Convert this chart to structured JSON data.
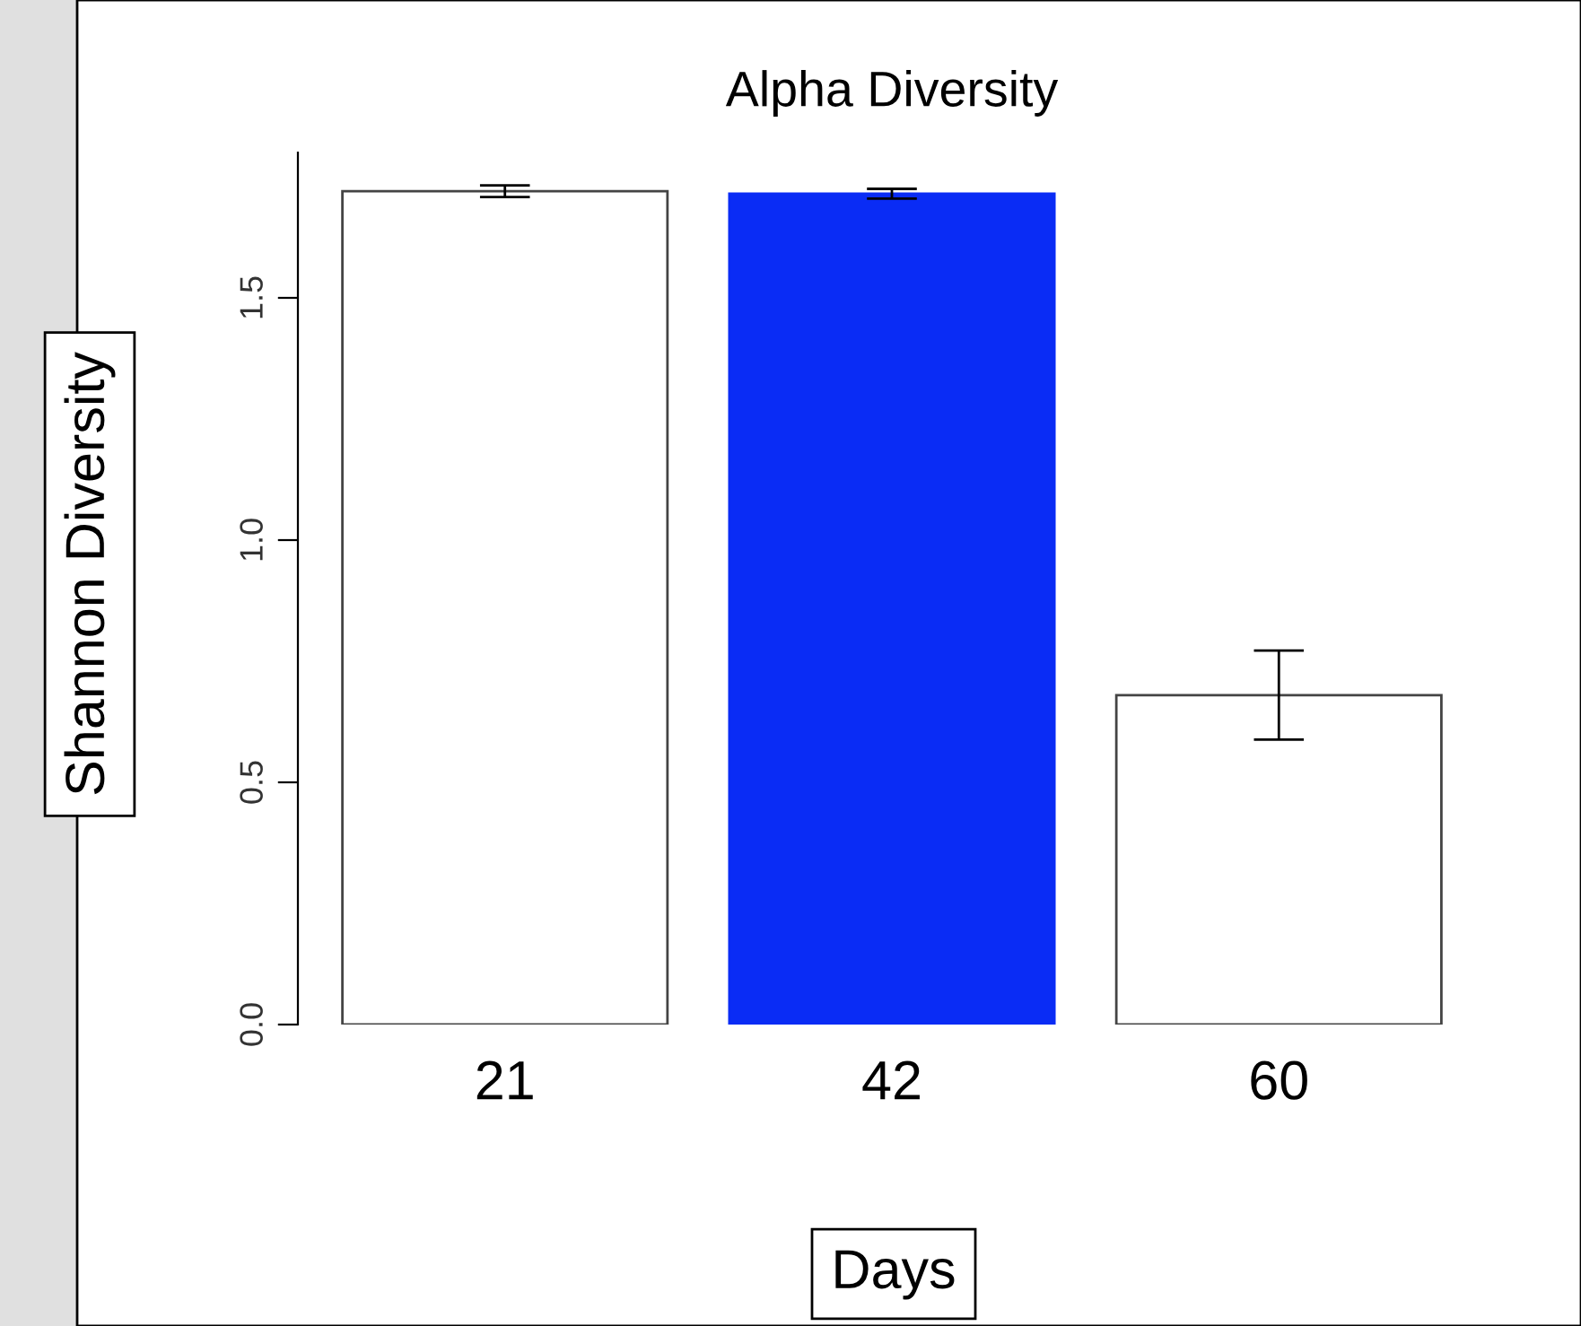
{
  "chart_data": {
    "type": "bar",
    "title": "Alpha Diversity",
    "xlabel": "Days",
    "ylabel": "Shannon Diversity",
    "categories": [
      "21",
      "42",
      "60"
    ],
    "values": [
      1.72,
      1.715,
      0.68
    ],
    "errors": [
      0.012,
      0.01,
      0.092
    ],
    "colors": [
      "#ffffff",
      "#0a2cf5",
      "#ffffff"
    ],
    "ylim": [
      0,
      1.8
    ],
    "yticks": [
      {
        "value": 0,
        "label": "0.0"
      },
      {
        "value": 0.5,
        "label": "0.5"
      },
      {
        "value": 1.0,
        "label": "1.0"
      },
      {
        "value": 1.5,
        "label": "1.5"
      }
    ],
    "grid": false,
    "legend": false
  }
}
